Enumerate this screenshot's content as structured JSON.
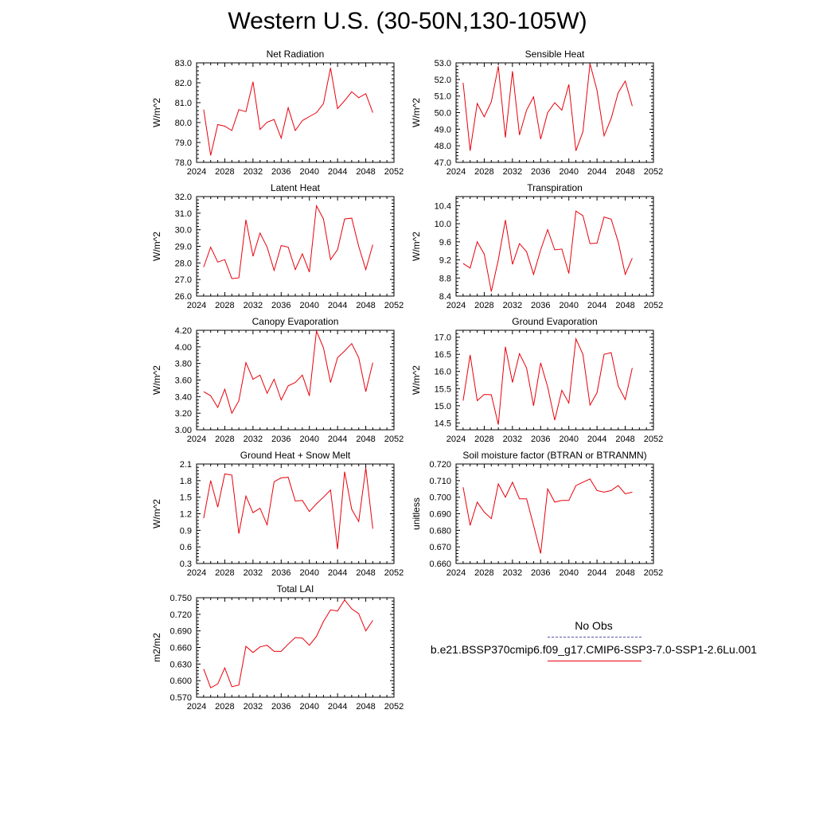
{
  "figure": {
    "title": "Western U.S. (30-50N,130-105W)",
    "series_color": "#e8000b",
    "obs_color": "#5555aa"
  },
  "legend": {
    "obs_label": "No Obs",
    "model_label": "b.e21.BSSP370cmip6.f09_g17.CMIP6-SSP3-7.0-SSP1-2.6Lu.001"
  },
  "chart_data": [
    {
      "type": "line",
      "title": "Net Radiation",
      "ylabel": "W/m^2",
      "xlim": [
        2024,
        2052
      ],
      "ylim": [
        78.0,
        83.0
      ],
      "xticks": [
        "2024",
        "2028",
        "2032",
        "2036",
        "2040",
        "2044",
        "2048",
        "2052"
      ],
      "yticks": [
        "78.0",
        "79.0",
        "80.0",
        "81.0",
        "82.0",
        "83.0"
      ],
      "x": [
        2025,
        2026,
        2027,
        2028,
        2029,
        2030,
        2031,
        2032,
        2033,
        2034,
        2035,
        2036,
        2037,
        2038,
        2039,
        2040,
        2041,
        2042,
        2043,
        2044,
        2045,
        2046,
        2047,
        2048,
        2049
      ],
      "y": [
        80.65,
        78.35,
        79.9,
        79.82,
        79.6,
        80.65,
        80.55,
        82.05,
        79.65,
        80.02,
        80.15,
        79.22,
        80.75,
        79.6,
        80.1,
        80.3,
        80.5,
        80.95,
        82.75,
        80.7,
        81.1,
        81.55,
        81.25,
        81.45,
        80.5
      ]
    },
    {
      "type": "line",
      "title": "Sensible Heat",
      "ylabel": "W/m^2",
      "xlim": [
        2024,
        2052
      ],
      "ylim": [
        47.0,
        53.0
      ],
      "xticks": [
        "2024",
        "2028",
        "2032",
        "2036",
        "2040",
        "2044",
        "2048",
        "2052"
      ],
      "yticks": [
        "47.0",
        "48.0",
        "49.0",
        "50.0",
        "51.0",
        "52.0",
        "53.0"
      ],
      "x": [
        2025,
        2026,
        2027,
        2028,
        2029,
        2030,
        2031,
        2032,
        2033,
        2034,
        2035,
        2036,
        2037,
        2038,
        2039,
        2040,
        2041,
        2042,
        2043,
        2044,
        2045,
        2046,
        2047,
        2048,
        2049
      ],
      "y": [
        51.8,
        47.7,
        50.55,
        49.75,
        50.65,
        52.8,
        48.5,
        52.5,
        48.65,
        50.15,
        50.95,
        48.4,
        50.0,
        50.6,
        50.15,
        51.7,
        47.7,
        48.85,
        52.95,
        51.35,
        48.6,
        49.65,
        51.2,
        51.9,
        50.4
      ]
    },
    {
      "type": "line",
      "title": "Latent Heat",
      "ylabel": "W/m^2",
      "xlim": [
        2024,
        2052
      ],
      "ylim": [
        26.0,
        32.0
      ],
      "xticks": [
        "2024",
        "2028",
        "2032",
        "2036",
        "2040",
        "2044",
        "2048",
        "2052"
      ],
      "yticks": [
        "26.0",
        "27.0",
        "28.0",
        "29.0",
        "30.0",
        "31.0",
        "32.0"
      ],
      "x": [
        2025,
        2026,
        2027,
        2028,
        2029,
        2030,
        2031,
        2032,
        2033,
        2034,
        2035,
        2036,
        2037,
        2038,
        2039,
        2040,
        2041,
        2042,
        2043,
        2044,
        2045,
        2046,
        2047,
        2048,
        2049
      ],
      "y": [
        27.75,
        28.95,
        28.05,
        28.2,
        27.05,
        27.1,
        30.6,
        28.4,
        29.8,
        28.95,
        27.55,
        29.05,
        28.95,
        27.6,
        28.55,
        27.45,
        31.45,
        30.65,
        28.2,
        28.8,
        30.65,
        30.7,
        29.0,
        27.6,
        29.1
      ]
    },
    {
      "type": "line",
      "title": "Transpiration",
      "ylabel": "W/m^2",
      "xlim": [
        2024,
        2052
      ],
      "ylim": [
        8.4,
        10.6
      ],
      "xticks": [
        "2024",
        "2028",
        "2032",
        "2036",
        "2040",
        "2044",
        "2048",
        "2052"
      ],
      "yticks": [
        "8.4",
        "8.8",
        "9.2",
        "9.6",
        "10.0",
        "10.4"
      ],
      "x": [
        2025,
        2026,
        2027,
        2028,
        2029,
        2030,
        2031,
        2032,
        2033,
        2034,
        2035,
        2036,
        2037,
        2038,
        2039,
        2040,
        2041,
        2042,
        2043,
        2044,
        2045,
        2046,
        2047,
        2048,
        2049
      ],
      "y": [
        9.12,
        9.02,
        9.6,
        9.33,
        8.5,
        9.2,
        10.08,
        9.1,
        9.56,
        9.38,
        8.88,
        9.42,
        9.87,
        9.42,
        9.44,
        8.9,
        10.28,
        10.18,
        9.56,
        9.57,
        10.15,
        10.1,
        9.6,
        8.88,
        9.24
      ]
    },
    {
      "type": "line",
      "title": "Canopy Evaporation",
      "ylabel": "W/m^2",
      "xlim": [
        2024,
        2052
      ],
      "ylim": [
        3.0,
        4.2
      ],
      "xticks": [
        "2024",
        "2028",
        "2032",
        "2036",
        "2040",
        "2044",
        "2048",
        "2052"
      ],
      "yticks": [
        "3.00",
        "3.20",
        "3.40",
        "3.60",
        "3.80",
        "4.00",
        "4.20"
      ],
      "x": [
        2025,
        2026,
        2027,
        2028,
        2029,
        2030,
        2031,
        2032,
        2033,
        2034,
        2035,
        2036,
        2037,
        2038,
        2039,
        2040,
        2041,
        2042,
        2043,
        2044,
        2045,
        2046,
        2047,
        2048,
        2049
      ],
      "y": [
        3.46,
        3.41,
        3.27,
        3.49,
        3.2,
        3.35,
        3.81,
        3.61,
        3.66,
        3.44,
        3.61,
        3.36,
        3.53,
        3.57,
        3.66,
        3.41,
        4.19,
        3.99,
        3.57,
        3.87,
        3.95,
        4.04,
        3.87,
        3.46,
        3.81
      ]
    },
    {
      "type": "line",
      "title": "Ground Evaporation",
      "ylabel": "W/m^2",
      "xlim": [
        2024,
        2052
      ],
      "ylim": [
        14.3,
        17.2
      ],
      "xticks": [
        "2024",
        "2028",
        "2032",
        "2036",
        "2040",
        "2044",
        "2048",
        "2052"
      ],
      "yticks": [
        "14.5",
        "15.0",
        "15.5",
        "16.0",
        "16.5",
        "17.0"
      ],
      "x": [
        2025,
        2026,
        2027,
        2028,
        2029,
        2030,
        2031,
        2032,
        2033,
        2034,
        2035,
        2036,
        2037,
        2038,
        2039,
        2040,
        2041,
        2042,
        2043,
        2044,
        2045,
        2046,
        2047,
        2048,
        2049
      ],
      "y": [
        15.15,
        16.48,
        15.15,
        15.33,
        15.32,
        14.45,
        16.72,
        15.68,
        16.52,
        16.1,
        15.0,
        16.25,
        15.55,
        14.58,
        15.45,
        15.08,
        16.95,
        16.5,
        15.02,
        15.38,
        16.5,
        16.55,
        15.58,
        15.18,
        16.1
      ]
    },
    {
      "type": "line",
      "title": "Ground Heat + Snow Melt",
      "ylabel": "W/m^2",
      "xlim": [
        2024,
        2052
      ],
      "ylim": [
        0.3,
        2.1
      ],
      "xticks": [
        "2024",
        "2028",
        "2032",
        "2036",
        "2040",
        "2044",
        "2048",
        "2052"
      ],
      "yticks": [
        "0.3",
        "0.6",
        "0.9",
        "1.2",
        "1.5",
        "1.8",
        "2.1"
      ],
      "x": [
        2025,
        2026,
        2027,
        2028,
        2029,
        2030,
        2031,
        2032,
        2033,
        2034,
        2035,
        2036,
        2037,
        2038,
        2039,
        2040,
        2041,
        2042,
        2043,
        2044,
        2045,
        2046,
        2047,
        2048,
        2049
      ],
      "y": [
        1.12,
        1.8,
        1.32,
        1.92,
        1.9,
        0.84,
        1.52,
        1.22,
        1.3,
        1.0,
        1.78,
        1.85,
        1.86,
        1.43,
        1.44,
        1.24,
        1.38,
        1.5,
        1.63,
        0.56,
        1.96,
        1.28,
        1.06,
        2.03,
        0.93
      ]
    },
    {
      "type": "line",
      "title": "Soil moisture factor (BTRAN or BTRANMN)",
      "ylabel": "unitless",
      "xlim": [
        2024,
        2052
      ],
      "ylim": [
        0.66,
        0.72
      ],
      "xticks": [
        "2024",
        "2028",
        "2032",
        "2036",
        "2040",
        "2044",
        "2048",
        "2052"
      ],
      "yticks": [
        "0.660",
        "0.670",
        "0.680",
        "0.690",
        "0.700",
        "0.710",
        "0.720"
      ],
      "x": [
        2025,
        2026,
        2027,
        2028,
        2029,
        2030,
        2031,
        2032,
        2033,
        2034,
        2035,
        2036,
        2037,
        2038,
        2039,
        2040,
        2041,
        2042,
        2043,
        2044,
        2045,
        2046,
        2047,
        2048,
        2049
      ],
      "y": [
        0.706,
        0.683,
        0.697,
        0.691,
        0.687,
        0.708,
        0.7,
        0.709,
        0.699,
        0.699,
        0.683,
        0.666,
        0.705,
        0.697,
        0.698,
        0.698,
        0.707,
        0.709,
        0.711,
        0.704,
        0.703,
        0.704,
        0.707,
        0.702,
        0.703
      ]
    },
    {
      "type": "line",
      "title": "Total LAI",
      "ylabel": "m2/m2",
      "xlim": [
        2024,
        2052
      ],
      "ylim": [
        0.57,
        0.75
      ],
      "xticks": [
        "2024",
        "2028",
        "2032",
        "2036",
        "2040",
        "2044",
        "2048",
        "2052"
      ],
      "yticks": [
        "0.570",
        "0.600",
        "0.630",
        "0.660",
        "0.690",
        "0.720",
        "0.750"
      ],
      "x": [
        2025,
        2026,
        2027,
        2028,
        2029,
        2030,
        2031,
        2032,
        2033,
        2034,
        2035,
        2036,
        2037,
        2038,
        2039,
        2040,
        2041,
        2042,
        2043,
        2044,
        2045,
        2046,
        2047,
        2048,
        2049
      ],
      "y": [
        0.621,
        0.587,
        0.594,
        0.623,
        0.589,
        0.592,
        0.662,
        0.651,
        0.661,
        0.664,
        0.653,
        0.653,
        0.666,
        0.678,
        0.677,
        0.664,
        0.68,
        0.707,
        0.728,
        0.726,
        0.746,
        0.73,
        0.721,
        0.69,
        0.709
      ]
    }
  ]
}
